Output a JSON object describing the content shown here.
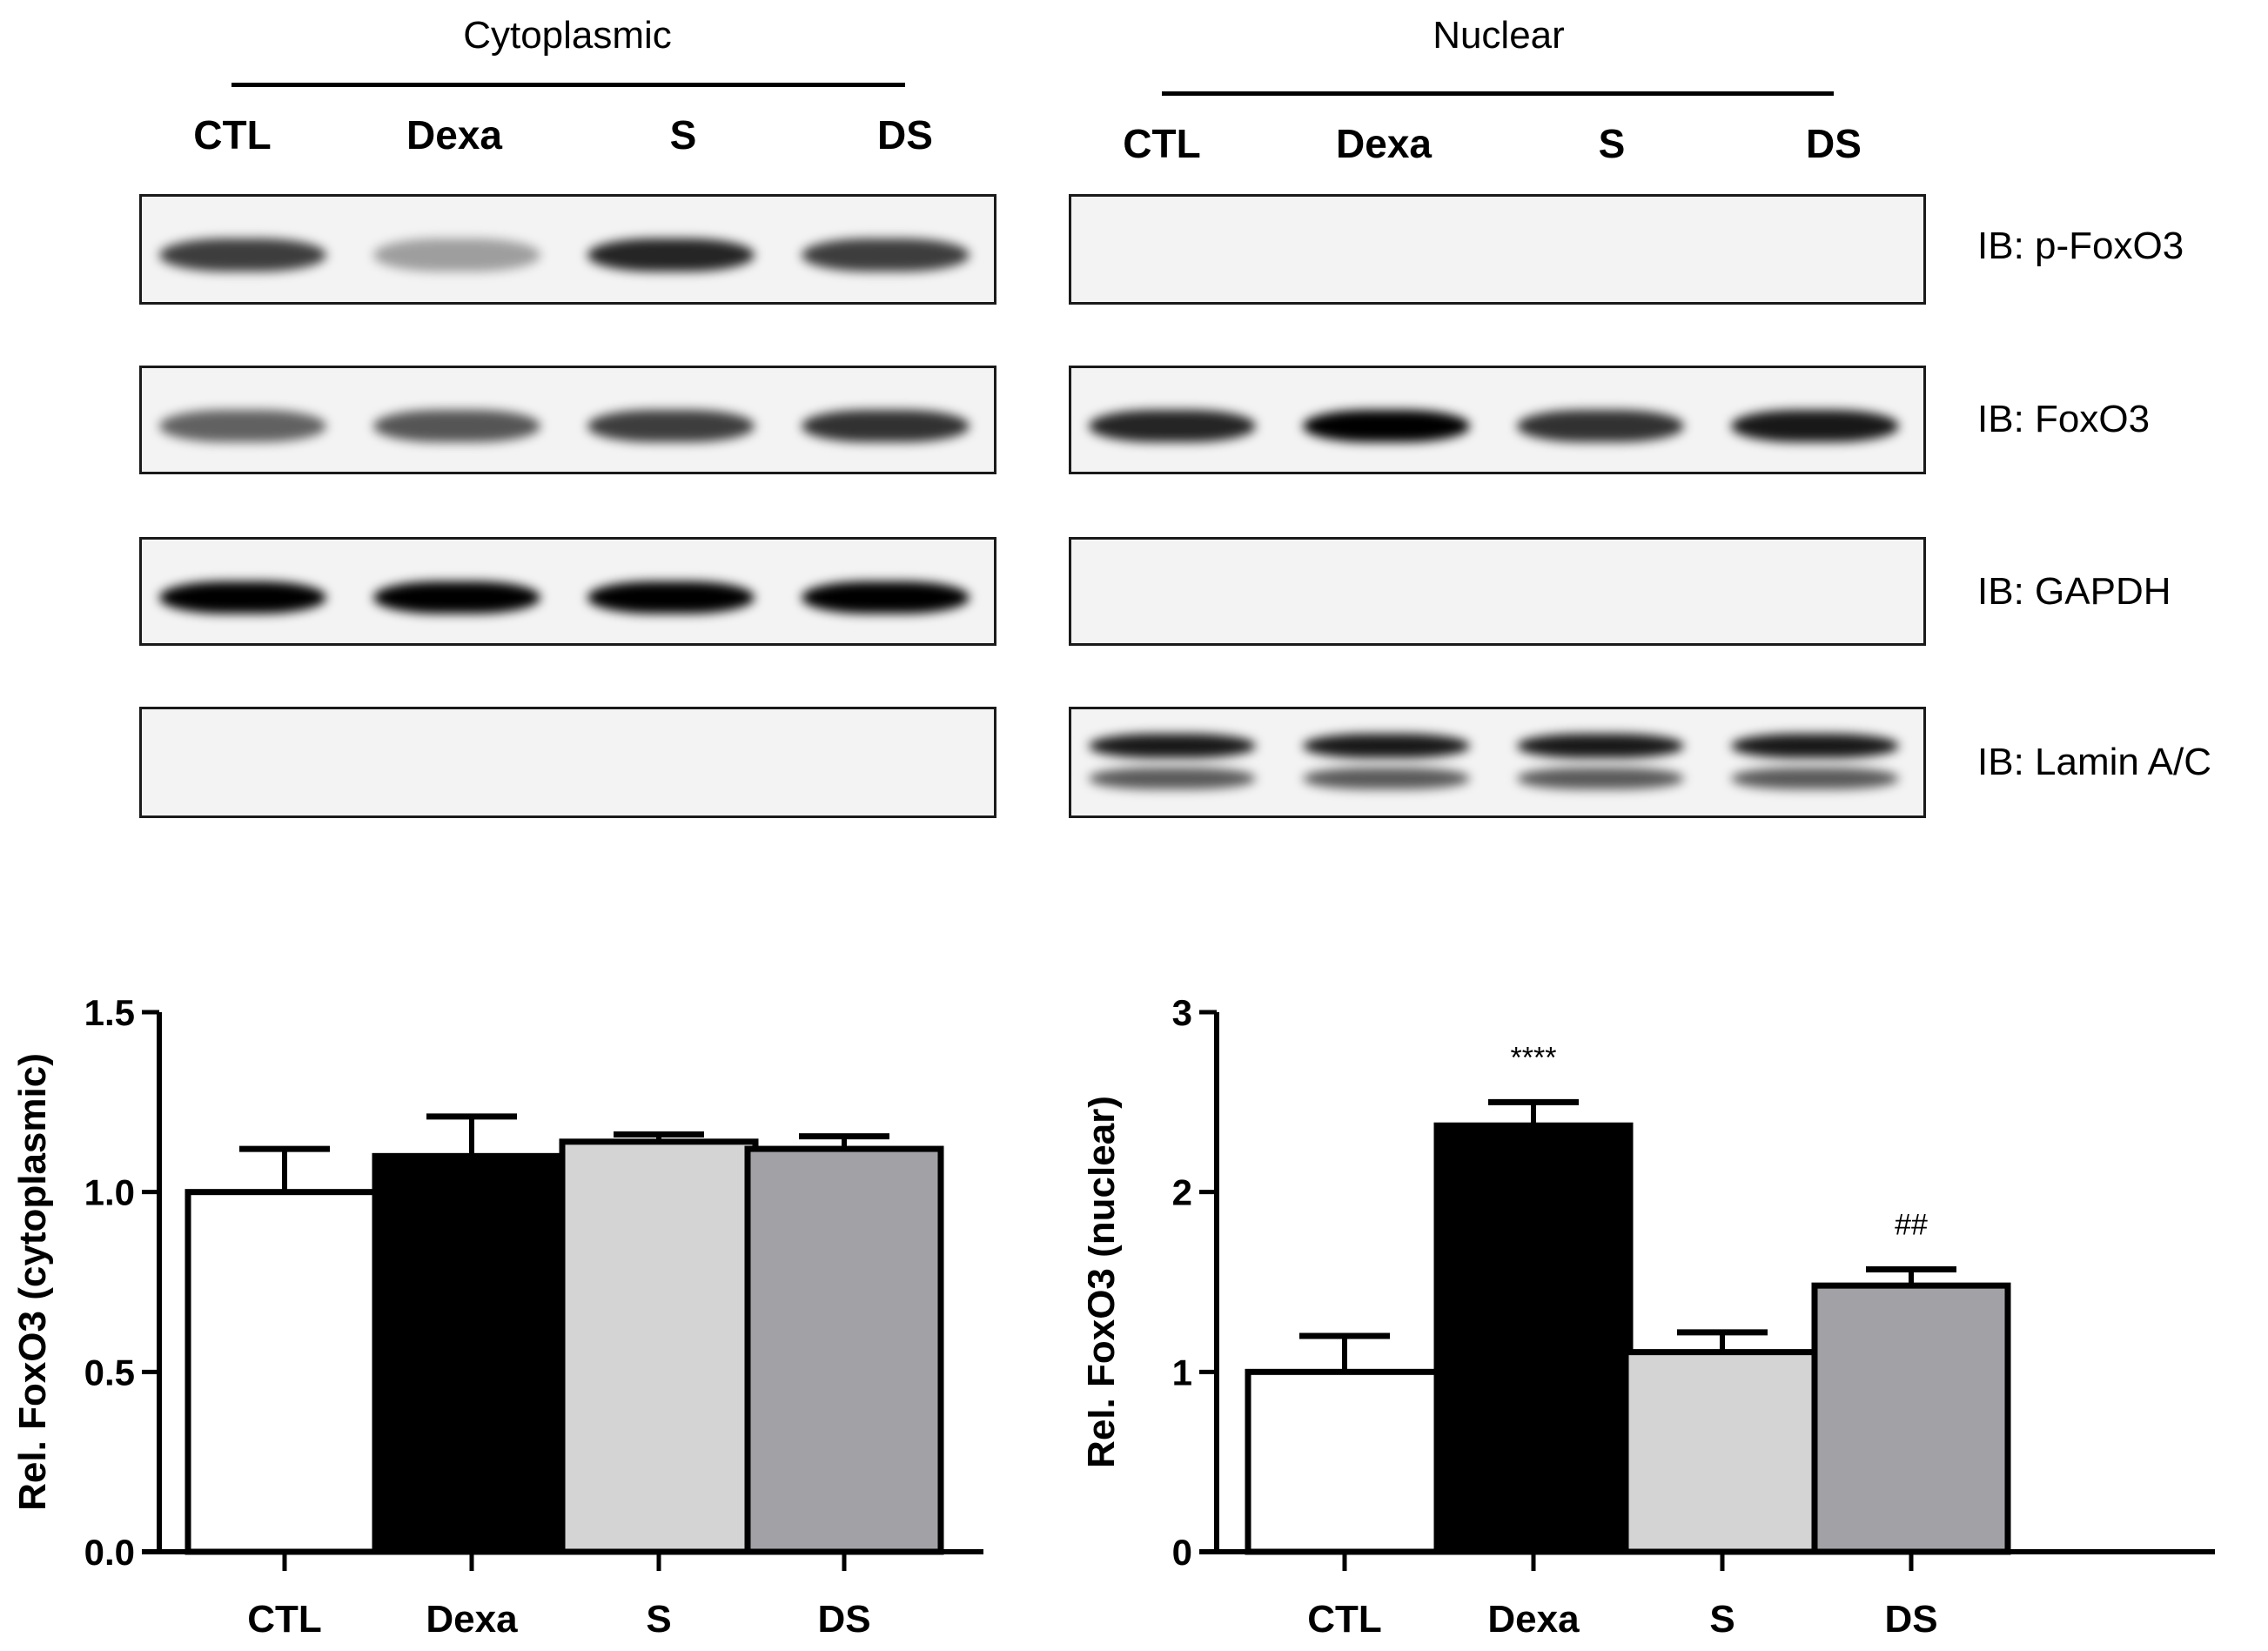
{
  "figure": {
    "groups": [
      {
        "id": "cytoplasmic",
        "title": "Cytoplasmic",
        "lanes": [
          "CTL",
          "Dexa",
          "S",
          "DS"
        ]
      },
      {
        "id": "nuclear",
        "title": "Nuclear",
        "lanes": [
          "CTL",
          "Dexa",
          "S",
          "DS"
        ]
      }
    ],
    "blot_rows": [
      {
        "label": "IB: p-FoxO3",
        "cytoplasmic_intensity": [
          0.75,
          0.35,
          0.85,
          0.75
        ],
        "nuclear_intensity": [
          0,
          0,
          0,
          0
        ]
      },
      {
        "label": "IB: FoxO3",
        "cytoplasmic_intensity": [
          0.6,
          0.65,
          0.75,
          0.8
        ],
        "nuclear_intensity": [
          0.85,
          1.0,
          0.8,
          0.9
        ]
      },
      {
        "label": "IB: GAPDH",
        "cytoplasmic_intensity": [
          1,
          1,
          1,
          1
        ],
        "nuclear_intensity": [
          0,
          0,
          0,
          0
        ]
      },
      {
        "label": "IB: Lamin A/C",
        "cytoplasmic_intensity": [
          0,
          0,
          0,
          0
        ],
        "nuclear_intensity": [
          0.9,
          0.9,
          0.9,
          0.9
        ]
      }
    ]
  },
  "colors": {
    "CTL": "#ffffff",
    "Dexa": "#000000",
    "S": "#d4d4d4",
    "DS": "#a2a1a6",
    "axis": "#000000"
  },
  "chart_data": [
    {
      "type": "bar",
      "title": "",
      "xlabel": "",
      "ylabel": "Rel. FoxO3 (cytoplasmic)",
      "categories": [
        "CTL",
        "Dexa",
        "S",
        "DS"
      ],
      "values": [
        1.0,
        1.1,
        1.14,
        1.12
      ],
      "error_upper": [
        1.12,
        1.21,
        1.16,
        1.155
      ],
      "ylim": [
        0,
        1.5
      ],
      "yticks": [
        "0.0",
        "0.5",
        "1.0",
        "1.5"
      ],
      "ytick_values": [
        0,
        0.5,
        1.0,
        1.5
      ],
      "annotations": [
        "",
        "",
        "",
        ""
      ],
      "grid": false,
      "legend": null
    },
    {
      "type": "bar",
      "title": "",
      "xlabel": "",
      "ylabel": "Rel. FoxO3 (nuclear)",
      "categories": [
        "CTL",
        "Dexa",
        "S",
        "DS"
      ],
      "values": [
        1.0,
        2.37,
        1.11,
        1.48
      ],
      "error_upper": [
        1.2,
        2.5,
        1.22,
        1.57
      ],
      "ylim": [
        0,
        3
      ],
      "yticks": [
        "0",
        "1",
        "2",
        "3"
      ],
      "ytick_values": [
        0,
        1,
        2,
        3
      ],
      "annotations": [
        "",
        "****",
        "",
        "##"
      ],
      "grid": false,
      "legend": null
    }
  ]
}
